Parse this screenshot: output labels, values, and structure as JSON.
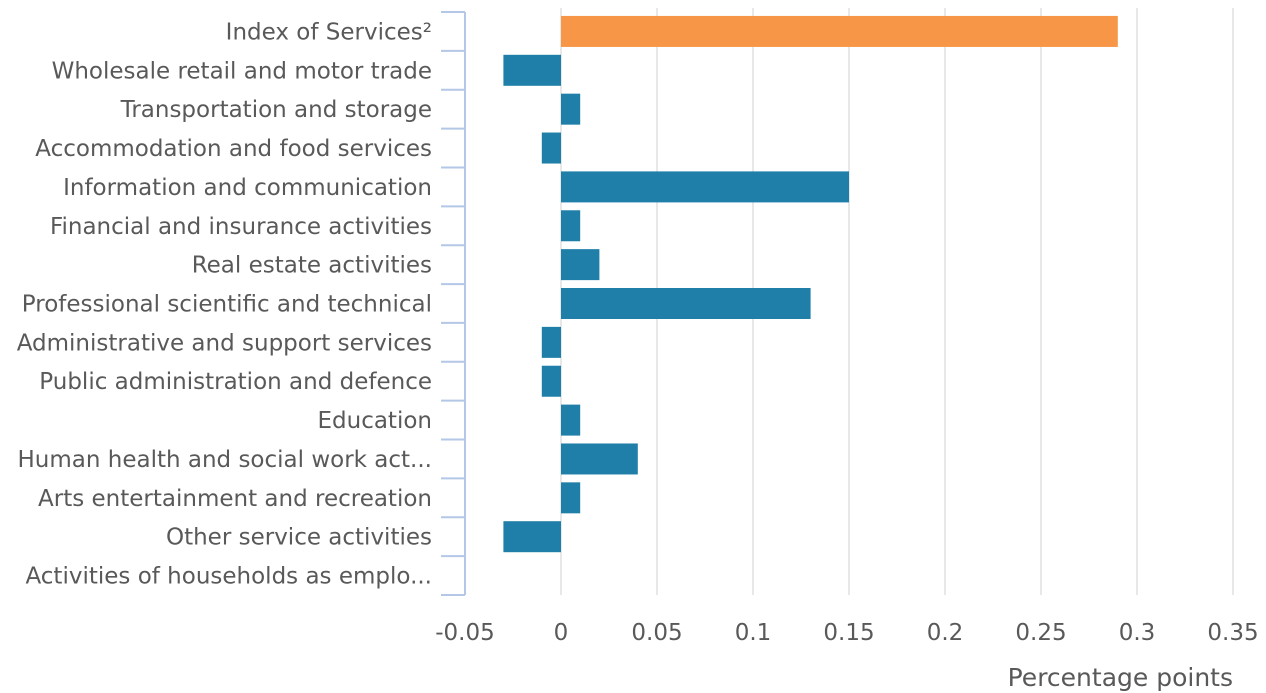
{
  "chart_data": {
    "type": "bar",
    "orientation": "horizontal",
    "categories": [
      "Index of Services²",
      "Wholesale retail and motor trade",
      "Transportation and storage",
      "Accommodation and food services",
      "Information and communication",
      "Financial and insurance activities",
      "Real estate activities",
      "Professional scientific and technical",
      "Administrative and support services",
      "Public administration and defence",
      "Education",
      "Human health and social work act...",
      "Arts entertainment and recreation",
      "Other service activities",
      "Activities of households as emplo..."
    ],
    "values": [
      0.29,
      -0.03,
      0.01,
      -0.01,
      0.15,
      0.01,
      0.02,
      0.13,
      -0.01,
      -0.01,
      0.01,
      0.04,
      0.01,
      -0.03,
      0
    ],
    "highlight_index": 0,
    "colors": {
      "highlight": "#f79646",
      "default": "#1f7fa8"
    },
    "xlim": [
      -0.05,
      0.35
    ],
    "xticks": [
      -0.05,
      0,
      0.05,
      0.1,
      0.15,
      0.2,
      0.25,
      0.3,
      0.35
    ],
    "xtick_labels": [
      "-0.05",
      "0",
      "0.05",
      "0.1",
      "0.15",
      "0.2",
      "0.25",
      "0.3",
      "0.35"
    ],
    "xlabel": "Percentage points",
    "title": "",
    "grid": true,
    "legend": "none"
  }
}
